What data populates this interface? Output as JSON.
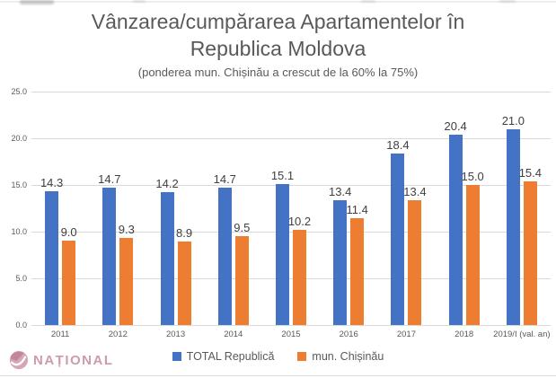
{
  "header": {
    "title": "Vânzarea/cumpărarea Apartamentelor în Republica Moldova",
    "subtitle": "(ponderea mun. Chișinău a crescut de la 60% la 75%)"
  },
  "watermark": {
    "text": "NAȚIONAL"
  },
  "colors": {
    "series_total": "#4472C4",
    "series_chisinau": "#ED7D31",
    "gridline": "#D9D9D9",
    "title_text": "#595959",
    "data_label_text": "#404040",
    "watermark_pink": "#C2879D"
  },
  "chart_data": {
    "type": "bar",
    "title": "Vânzarea/cumpărarea Apartamentelor în Republica Moldova",
    "subtitle": "(ponderea mun. Chișinău a crescut de la 60% la 75%)",
    "categories": [
      "2011",
      "2012",
      "2013",
      "2014",
      "2015",
      "2016",
      "2017",
      "2018",
      "2019/I (val. an)"
    ],
    "series": [
      {
        "name": "TOTAL Republică",
        "color": "#4472C4",
        "values": [
          14.3,
          14.7,
          14.2,
          14.7,
          15.1,
          13.4,
          18.4,
          20.4,
          21.0
        ]
      },
      {
        "name": "mun. Chișinău",
        "color": "#ED7D31",
        "values": [
          9.0,
          9.3,
          8.9,
          9.5,
          10.2,
          11.4,
          13.4,
          15.0,
          15.4
        ]
      }
    ],
    "xlabel": "",
    "ylabel": "",
    "ylim": [
      0,
      25
    ],
    "yticks": [
      0,
      5,
      10,
      15,
      20,
      25
    ],
    "ytick_format": "one_decimal",
    "grid": "horizontal",
    "legend_position": "bottom",
    "data_labels": true
  }
}
